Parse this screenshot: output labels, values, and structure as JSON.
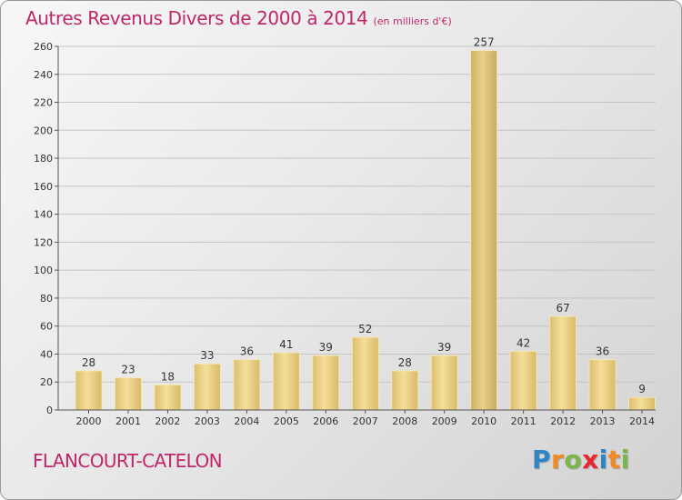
{
  "title": {
    "main": "Autres Revenus Divers de 2000 à 2014",
    "unit": "(en milliers d'€)"
  },
  "commune": "FLANCOURT-CATELON",
  "brand": {
    "text": "Proxiti",
    "letter_colors": [
      "#2e86c8",
      "#f08a24",
      "#7ab648",
      "#e8262e",
      "#2e86c8",
      "#f08a24",
      "#7ab648"
    ]
  },
  "chart_data": {
    "type": "bar",
    "categories": [
      "2000",
      "2001",
      "2002",
      "2003",
      "2004",
      "2005",
      "2006",
      "2007",
      "2008",
      "2009",
      "2010",
      "2011",
      "2012",
      "2013",
      "2014"
    ],
    "values": [
      28,
      23,
      18,
      33,
      36,
      41,
      39,
      52,
      28,
      39,
      257,
      42,
      67,
      36,
      9
    ],
    "ylim": [
      0,
      260
    ],
    "yticks": [
      0,
      20,
      40,
      60,
      80,
      100,
      120,
      140,
      160,
      180,
      200,
      220,
      240,
      260
    ],
    "grid": true,
    "legend": "none",
    "bar_color": "#e5cb7d"
  }
}
